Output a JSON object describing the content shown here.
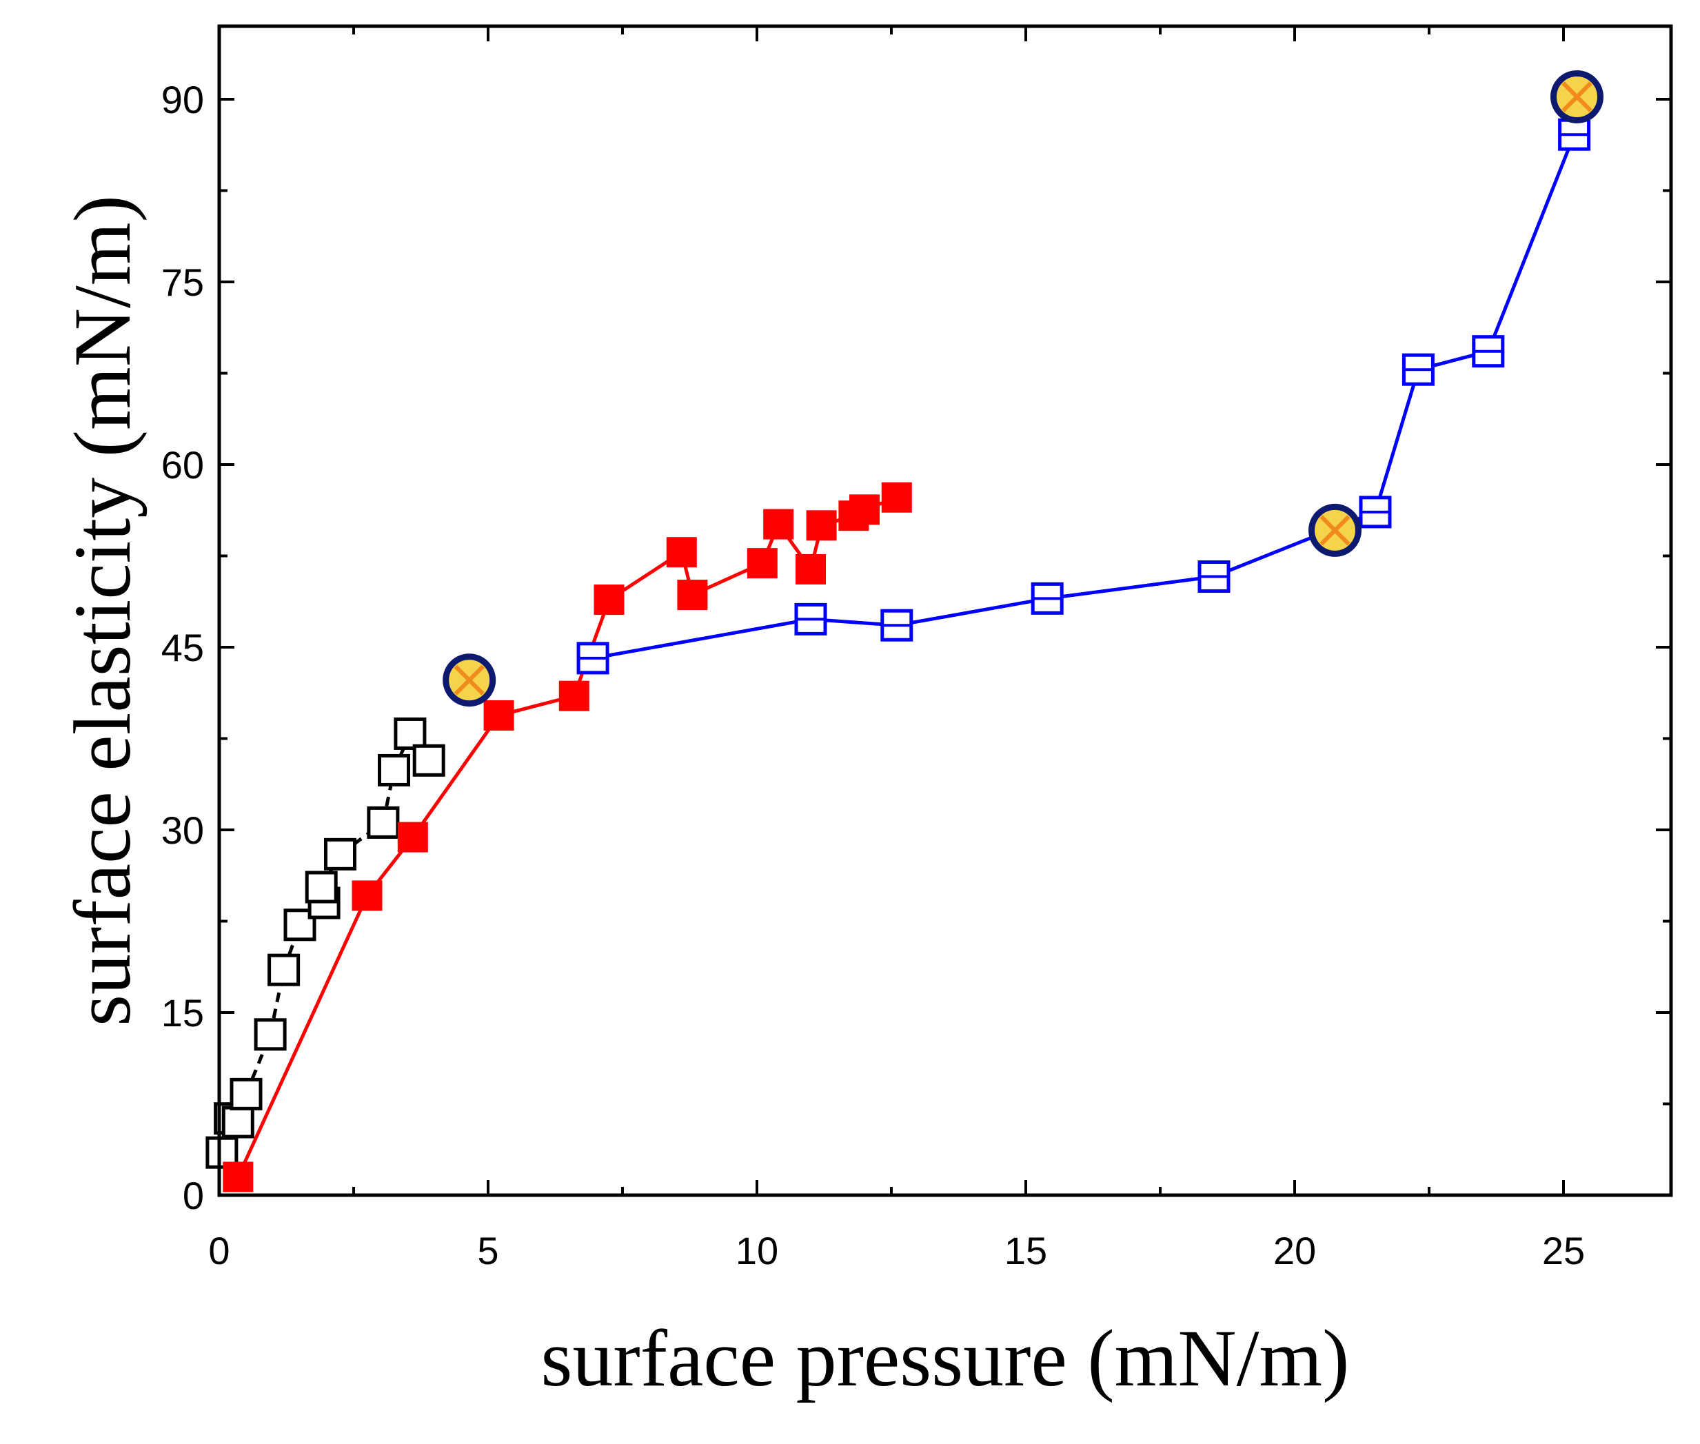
{
  "chart_data": {
    "type": "scatter",
    "xlabel": "surface pressure (mN/m)",
    "ylabel": "surface elasticity (mN/m)",
    "xlim": [
      0,
      27
    ],
    "ylim": [
      0,
      96
    ],
    "xticks": [
      0,
      5,
      10,
      15,
      20,
      25
    ],
    "yticks": [
      0,
      15,
      30,
      45,
      60,
      75,
      90
    ],
    "minor_ticks": true,
    "ticks_mirrored": true,
    "grid": false,
    "series": [
      {
        "marker": "open-square",
        "color": "#000000",
        "line": "dashed",
        "points": [
          [
            0.05,
            3.5
          ],
          [
            0.2,
            6.3
          ],
          [
            0.35,
            6.0
          ],
          [
            0.5,
            8.3
          ],
          [
            0.95,
            13.2
          ],
          [
            1.2,
            18.5
          ],
          [
            1.5,
            22.2
          ],
          [
            1.95,
            24.0
          ],
          [
            1.9,
            25.3
          ],
          [
            2.25,
            28.0
          ],
          [
            3.05,
            30.6
          ],
          [
            3.25,
            34.9
          ],
          [
            3.55,
            37.9
          ],
          [
            3.9,
            35.7
          ]
        ]
      },
      {
        "marker": "filled-square",
        "color": "#ff0000",
        "line": "solid",
        "points": [
          [
            0.35,
            1.5
          ],
          [
            2.75,
            24.6
          ],
          [
            3.6,
            29.4
          ],
          [
            5.2,
            39.4
          ],
          [
            6.6,
            41.0
          ],
          [
            7.25,
            48.9
          ],
          [
            8.6,
            52.8
          ],
          [
            8.8,
            49.3
          ],
          [
            10.1,
            51.9
          ],
          [
            10.4,
            55.1
          ],
          [
            11.0,
            51.4
          ],
          [
            11.2,
            55.0
          ],
          [
            11.8,
            55.8
          ],
          [
            12.0,
            56.3
          ],
          [
            12.6,
            57.3
          ]
        ]
      },
      {
        "marker": "open-square-hline",
        "color": "#0000ff",
        "line": "solid",
        "points": [
          [
            6.95,
            44.1
          ],
          [
            11.0,
            47.3
          ],
          [
            12.6,
            46.8
          ],
          [
            15.4,
            49.0
          ],
          [
            18.5,
            50.8
          ],
          [
            21.5,
            56.1
          ],
          [
            22.3,
            67.8
          ],
          [
            23.6,
            69.3
          ],
          [
            25.2,
            87.1
          ]
        ]
      }
    ],
    "highlights": {
      "marker": "circle-with-x",
      "fill": "#f5d34a",
      "edge": "#0d1a70",
      "cross": "#f08a1c",
      "points": [
        [
          4.65,
          42.3
        ],
        [
          20.75,
          54.6
        ],
        [
          25.25,
          90.2
        ]
      ]
    }
  }
}
